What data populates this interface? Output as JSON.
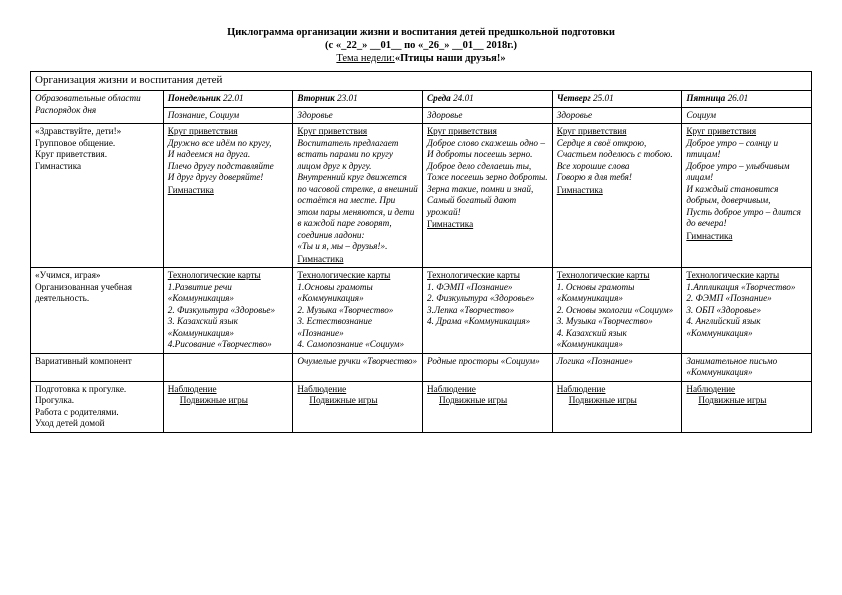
{
  "title": {
    "line1": "Циклограмма организации жизни и воспитания детей предшкольной подготовки",
    "line2": "(с «_22_» __01__ по «_26_» __01__ 2018г.)",
    "line3_label": "Тема недели:",
    "line3_value": "«Птицы наши друзья!»"
  },
  "caption": "Организация жизни и воспитания детей",
  "header": {
    "areas_label": "Образовательные области",
    "routine_label": "Распорядок дня",
    "days": [
      {
        "name": "Понедельник",
        "date": "22.01",
        "sub": "Познание, Социум"
      },
      {
        "name": "Вторник",
        "date": "23.01",
        "sub": "Здоровье"
      },
      {
        "name": "Среда",
        "date": "24.01",
        "sub": "Здоровье"
      },
      {
        "name": "Четверг",
        "date": "25.01",
        "sub": "Здоровье"
      },
      {
        "name": "Пятница",
        "date": "26.01",
        "sub": "Социум"
      }
    ]
  },
  "row1": {
    "label": "«Здравствуйте, дети!»\n  Групповое общение.\nКруг приветствия.\nГимнастика",
    "greet_title": "Круг приветствия",
    "gym_label": "Гимнастика",
    "cells": [
      "Дружно все идём по кругу,\nИ надеемся на друга.\nПлечо другу подставляйте\nИ друг другу доверяйте!",
      "Воспитатель предлагает встать парами по кругу лицом друг к другу. Внутренний круг движется по часовой стрелке, а внешний остаётся на месте. При этом пары меняются, и дети в каждой паре говорят, соединив ладони:\n«Ты и я, мы – друзья!».",
      "Доброе слово скажешь одно –\nИ доброты посеешь зерно.\nДоброе дело сделаешь ты,\nТоже посеешь зерно доброты.\nЗерна такие, помни и знай,\nСамый богатый дают урожай!",
      "Сердце я своё открою,\nСчастьем поделюсь с тобою.\nВсе хорошие слова\nГоворю я для тебя!",
      "Доброе утро – солнцу и птицам!\nДоброе утро – улыбчивым лицам!\nИ каждый становится добрым, доверчивым,\nПусть доброе утро – длится до вечера!"
    ]
  },
  "row2": {
    "label": "«Учимся, играя»\nОрганизованная учебная деятельность.",
    "tech_title": "Технологические карты",
    "cells": [
      "1.Развитие речи «Коммуникация»\n2. Физкультура «Здоровье»\n3. Казахский язык «Коммуникация»\n4.Рисование «Творчество»",
      "1.Основы грамоты «Коммуникация»\n2. Музыка «Творчество»\n3. Естествознание «Познание»\n4. Самопознание «Социум»",
      "1. ФЭМП «Познание»\n2. Физкультура «Здоровье»\n3.Лепка «Творчество»\n4. Драма «Коммуникация»",
      "1. Основы грамоты «Коммуникация»\n2. Основы экологии «Социум»\n3. Музыка «Творчество»\n4. Казахский язык «Коммуникация»",
      "1.Аппликация «Творчество»\n2. ФЭМП «Познание»\n3. ОБП «Здоровье»\n4. Английский язык «Коммуникация»"
    ]
  },
  "row3": {
    "label": "Вариативный компонент",
    "cells": [
      "",
      "Очумелые ручки «Творчество»",
      "Родные просторы «Социум»",
      "Логика «Познание»",
      "Занимательное письмо «Коммуникация»"
    ]
  },
  "row4": {
    "label": "Подготовка к прогулке.\nПрогулка.\nРабота с родителями.\nУход детей домой",
    "obs": "Наблюдение",
    "games": "Подвижные игры"
  }
}
